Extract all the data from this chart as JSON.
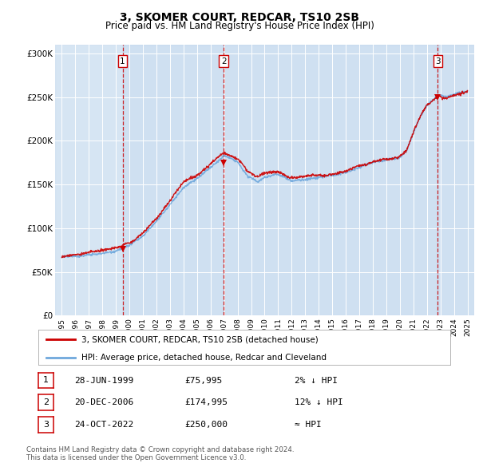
{
  "title": "3, SKOMER COURT, REDCAR, TS10 2SB",
  "subtitle": "Price paid vs. HM Land Registry's House Price Index (HPI)",
  "ylabel_ticks": [
    "£0",
    "£50K",
    "£100K",
    "£150K",
    "£200K",
    "£250K",
    "£300K"
  ],
  "ytick_values": [
    0,
    50000,
    100000,
    150000,
    200000,
    250000,
    300000
  ],
  "ylim": [
    0,
    310000
  ],
  "xlim_start": 1994.5,
  "xlim_end": 2025.5,
  "background_color": "#dce9f5",
  "plot_bg_color": "#dce9f5",
  "hpi_color": "#6fa8dc",
  "price_color": "#cc0000",
  "sale_marker_color": "#cc0000",
  "dashed_line_color": "#cc0000",
  "shade_color": "#b8d0eb",
  "transactions": [
    {
      "num": 1,
      "date_label": "28-JUN-1999",
      "year": 1999.49,
      "price": 75995
    },
    {
      "num": 2,
      "date_label": "20-DEC-2006",
      "year": 2006.97,
      "price": 174995
    },
    {
      "num": 3,
      "date_label": "24-OCT-2022",
      "year": 2022.81,
      "price": 250000
    }
  ],
  "legend_line1": "3, SKOMER COURT, REDCAR, TS10 2SB (detached house)",
  "legend_line2": "HPI: Average price, detached house, Redcar and Cleveland",
  "footnote1": "Contains HM Land Registry data © Crown copyright and database right 2024.",
  "footnote2": "This data is licensed under the Open Government Licence v3.0.",
  "table_rows": [
    {
      "num": 1,
      "date": "28-JUN-1999",
      "price": "£75,995",
      "hpi": "2% ↓ HPI"
    },
    {
      "num": 2,
      "date": "20-DEC-2006",
      "price": "£174,995",
      "hpi": "12% ↓ HPI"
    },
    {
      "num": 3,
      "date": "24-OCT-2022",
      "price": "£250,000",
      "hpi": "≈ HPI"
    }
  ]
}
